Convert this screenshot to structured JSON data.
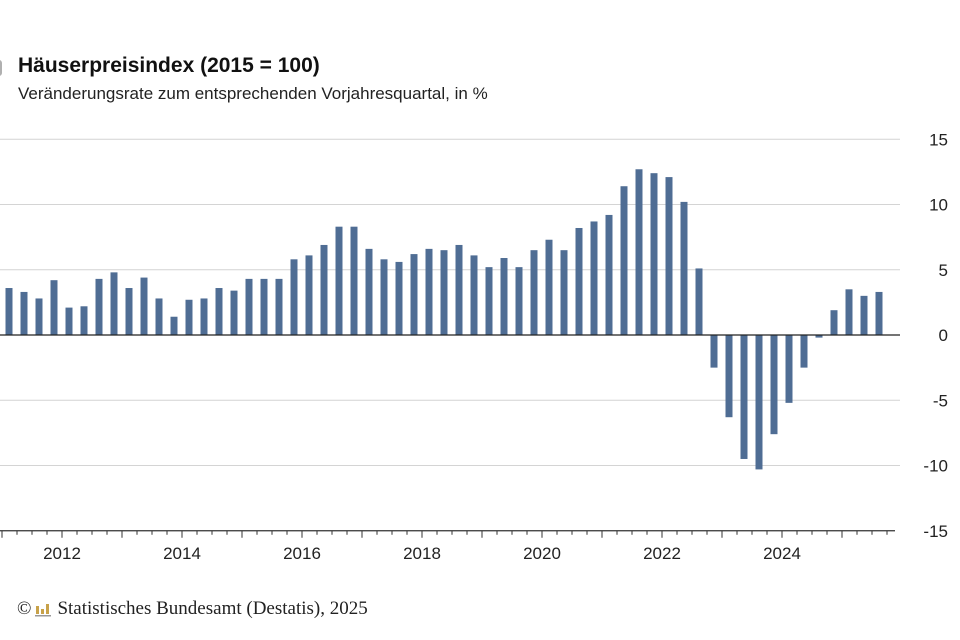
{
  "chart_data": {
    "type": "bar",
    "title": "Häuserpreisindex (2015 = 100)",
    "subtitle": "Veränderungsrate zum entsprechenden Vorjahresquartal, in %",
    "xlabel": "",
    "ylabel": "",
    "ylim": [
      -15,
      15
    ],
    "yticks": [
      "15",
      "10",
      "5",
      "0",
      "-5",
      "-10",
      "-15"
    ],
    "ytick_values": [
      15,
      10,
      5,
      0,
      -5,
      -10,
      -15
    ],
    "xtick_labels": [
      "2012",
      "2014",
      "2016",
      "2018",
      "2020",
      "2022",
      "2024"
    ],
    "grid": true,
    "y_axis_position": "right",
    "bar_color": "#4f6d94",
    "x": [
      "2011 Q1",
      "2011 Q2",
      "2011 Q3",
      "2011 Q4",
      "2012 Q1",
      "2012 Q2",
      "2012 Q3",
      "2012 Q4",
      "2013 Q1",
      "2013 Q2",
      "2013 Q3",
      "2013 Q4",
      "2014 Q1",
      "2014 Q2",
      "2014 Q3",
      "2014 Q4",
      "2015 Q1",
      "2015 Q2",
      "2015 Q3",
      "2015 Q4",
      "2016 Q1",
      "2016 Q2",
      "2016 Q3",
      "2016 Q4",
      "2017 Q1",
      "2017 Q2",
      "2017 Q3",
      "2017 Q4",
      "2018 Q1",
      "2018 Q2",
      "2018 Q3",
      "2018 Q4",
      "2019 Q1",
      "2019 Q2",
      "2019 Q3",
      "2019 Q4",
      "2020 Q1",
      "2020 Q2",
      "2020 Q3",
      "2020 Q4",
      "2021 Q1",
      "2021 Q2",
      "2021 Q3",
      "2021 Q4",
      "2022 Q1",
      "2022 Q2",
      "2022 Q3",
      "2022 Q4",
      "2023 Q1",
      "2023 Q2",
      "2023 Q3",
      "2023 Q4",
      "2024 Q1",
      "2024 Q2",
      "2024 Q3",
      "2024 Q4",
      "2025 Q1",
      "2025 Q2",
      "2025 Q3"
    ],
    "values": [
      3.6,
      3.3,
      2.8,
      4.2,
      2.1,
      2.2,
      4.3,
      4.8,
      3.6,
      4.4,
      2.8,
      1.4,
      2.7,
      2.8,
      3.6,
      3.4,
      4.3,
      4.3,
      4.3,
      5.8,
      6.1,
      6.9,
      8.3,
      8.3,
      6.6,
      5.8,
      5.6,
      6.2,
      6.6,
      6.5,
      6.9,
      6.1,
      5.2,
      5.9,
      5.2,
      6.5,
      7.3,
      6.5,
      8.2,
      8.7,
      9.2,
      11.4,
      12.7,
      12.4,
      12.1,
      10.2,
      5.1,
      -2.5,
      -6.3,
      -9.5,
      -10.3,
      -7.6,
      -5.2,
      -2.5,
      -0.2,
      1.9,
      3.5,
      3.0,
      3.3
    ]
  },
  "footer": {
    "copyright_symbol": "©",
    "source": "Statistisches Bundesamt (Destatis), 2025"
  }
}
